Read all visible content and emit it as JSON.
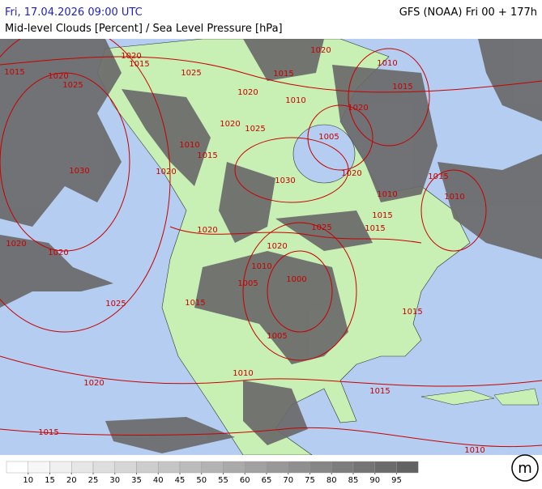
{
  "header": {
    "valid_time": "Fri, 17.04.2026 09:00 UTC",
    "model_run": "GFS (NOAA) Fri 00 + 177h",
    "title": "Mid-level Clouds [Percent] / Sea Level Pressure [hPa]"
  },
  "isobar_labels": [
    "1020",
    "1015",
    "1015",
    "1020",
    "1025",
    "1025",
    "1020",
    "1010",
    "1015",
    "1020",
    "1010",
    "1015",
    "1020",
    "1020",
    "1025",
    "1005",
    "1010",
    "1015",
    "1030",
    "1020",
    "1020",
    "1030",
    "1015",
    "1010",
    "1010",
    "1020",
    "1025",
    "1015",
    "1015",
    "1020",
    "1020",
    "1020",
    "1010",
    "1005",
    "1000",
    "1025",
    "1015",
    "1015",
    "1005",
    "1010",
    "1020",
    "1015",
    "1015",
    "1010"
  ],
  "legend": {
    "values": [
      10,
      15,
      20,
      25,
      30,
      35,
      40,
      45,
      50,
      55,
      60,
      65,
      70,
      75,
      80,
      85,
      90,
      95
    ],
    "colors": [
      "#ffffff",
      "#f7f7f7",
      "#efefef",
      "#e6e6e6",
      "#dedede",
      "#d6d6d6",
      "#cdcdcd",
      "#c5c5c5",
      "#bcbcbc",
      "#b3b3b3",
      "#aaaaaa",
      "#a1a1a1",
      "#989898",
      "#8f8f8f",
      "#868686",
      "#7d7d7d",
      "#747474",
      "#6b6b6b",
      "#626262"
    ]
  },
  "logo": "m"
}
